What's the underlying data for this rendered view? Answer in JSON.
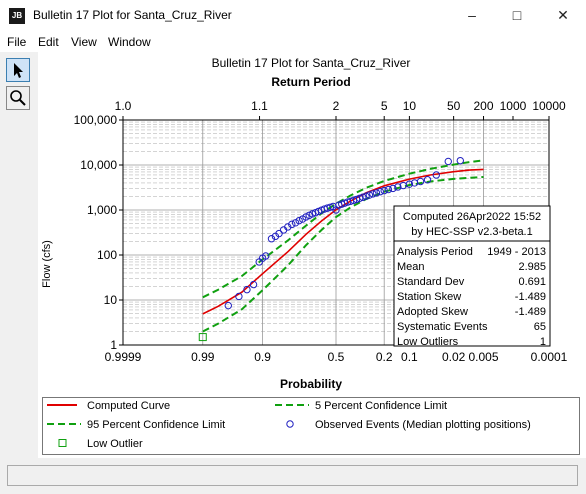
{
  "window": {
    "title": "Bulletin 17 Plot for Santa_Cruz_River",
    "app_icon_label": "JB",
    "minimize_icon": "minimize-icon",
    "maximize_icon": "maximize-icon",
    "close_icon": "close-icon"
  },
  "menu": [
    "File",
    "Edit",
    "View",
    "Window"
  ],
  "tools": [
    {
      "name": "pointer-tool",
      "icon": "arrow-pointer-icon"
    },
    {
      "name": "zoom-tool",
      "icon": "magnifier-icon"
    }
  ],
  "chart_data": {
    "type": "scatter",
    "title": "Bulletin 17 Plot for Santa_Cruz_River",
    "top_axis_label": "Return Period",
    "top_ticks": [
      "1.0",
      "1.1",
      "2",
      "5",
      "10",
      "50",
      "200",
      "1000",
      "10000"
    ],
    "xlabel": "Probability",
    "x_ticks": [
      "0.9999",
      "0.99",
      "0.9",
      "0.5",
      "0.2",
      "0.1",
      "0.02",
      "0.005",
      "0.0001"
    ],
    "ylabel": "Flow (cfs)",
    "y_ticks": [
      "1",
      "10",
      "100",
      "1,000",
      "10,000",
      "100,000"
    ],
    "ylim": [
      1,
      100000
    ],
    "y_scale": "log",
    "x_scale": "normal-probability",
    "grid": true,
    "series": [
      {
        "name": "Computed Curve",
        "color": "#e00000",
        "style": "solid",
        "points": [
          [
            0.99,
            4.9
          ],
          [
            0.98,
            7.3
          ],
          [
            0.95,
            14.9
          ],
          [
            0.9,
            38.5
          ],
          [
            0.8,
            118
          ],
          [
            0.7,
            288
          ],
          [
            0.6,
            570
          ],
          [
            0.5,
            1010
          ],
          [
            0.4,
            1580
          ],
          [
            0.3,
            2400
          ],
          [
            0.2,
            3450
          ],
          [
            0.1,
            4870
          ],
          [
            0.05,
            6000
          ],
          [
            0.02,
            7100
          ],
          [
            0.01,
            7700
          ],
          [
            0.005,
            8000
          ]
        ]
      },
      {
        "name": "5 Percent Confidence Limit",
        "color": "#10a010",
        "style": "dashed",
        "points": [
          [
            0.99,
            11.5
          ],
          [
            0.98,
            17
          ],
          [
            0.95,
            34
          ],
          [
            0.9,
            80
          ],
          [
            0.8,
            210
          ],
          [
            0.7,
            450
          ],
          [
            0.6,
            840
          ],
          [
            0.5,
            1380
          ],
          [
            0.4,
            2100
          ],
          [
            0.3,
            3100
          ],
          [
            0.2,
            4400
          ],
          [
            0.1,
            6400
          ],
          [
            0.05,
            8200
          ],
          [
            0.02,
            10200
          ],
          [
            0.01,
            11600
          ],
          [
            0.005,
            12700
          ]
        ]
      },
      {
        "name": "95 Percent Confidence Limit",
        "color": "#10a010",
        "style": "dashed",
        "points": [
          [
            0.99,
            2.0
          ],
          [
            0.98,
            3.0
          ],
          [
            0.95,
            6.2
          ],
          [
            0.9,
            16.5
          ],
          [
            0.8,
            58
          ],
          [
            0.7,
            165
          ],
          [
            0.6,
            360
          ],
          [
            0.5,
            700
          ],
          [
            0.4,
            1140
          ],
          [
            0.3,
            1750
          ],
          [
            0.2,
            2550
          ],
          [
            0.1,
            3600
          ],
          [
            0.05,
            4300
          ],
          [
            0.02,
            4900
          ],
          [
            0.01,
            5200
          ],
          [
            0.005,
            5400
          ]
        ]
      },
      {
        "name": "Observed Events (Median plotting positions)",
        "color": "#2020c0",
        "marker": "circle",
        "points": [
          [
            0.97,
            7.5
          ],
          [
            0.955,
            12
          ],
          [
            0.94,
            17
          ],
          [
            0.925,
            22
          ],
          [
            0.91,
            70
          ],
          [
            0.9,
            85
          ],
          [
            0.89,
            95
          ],
          [
            0.87,
            230
          ],
          [
            0.855,
            260
          ],
          [
            0.84,
            300
          ],
          [
            0.82,
            360
          ],
          [
            0.8,
            420
          ],
          [
            0.78,
            480
          ],
          [
            0.76,
            520
          ],
          [
            0.74,
            580
          ],
          [
            0.72,
            630
          ],
          [
            0.7,
            700
          ],
          [
            0.68,
            760
          ],
          [
            0.66,
            820
          ],
          [
            0.64,
            870
          ],
          [
            0.62,
            930
          ],
          [
            0.6,
            990
          ],
          [
            0.58,
            1050
          ],
          [
            0.56,
            1100
          ],
          [
            0.54,
            1150
          ],
          [
            0.52,
            1200
          ],
          [
            0.5,
            1000
          ],
          [
            0.48,
            1280
          ],
          [
            0.46,
            1350
          ],
          [
            0.44,
            1420
          ],
          [
            0.42,
            1500
          ],
          [
            0.4,
            1560
          ],
          [
            0.38,
            1640
          ],
          [
            0.36,
            1720
          ],
          [
            0.34,
            1820
          ],
          [
            0.32,
            1920
          ],
          [
            0.3,
            2020
          ],
          [
            0.28,
            2150
          ],
          [
            0.26,
            2280
          ],
          [
            0.24,
            2400
          ],
          [
            0.22,
            2550
          ],
          [
            0.2,
            2700
          ],
          [
            0.18,
            2850
          ],
          [
            0.16,
            3020
          ],
          [
            0.14,
            3250
          ],
          [
            0.12,
            3500
          ],
          [
            0.1,
            3750
          ],
          [
            0.085,
            4000
          ],
          [
            0.07,
            4300
          ],
          [
            0.055,
            4700
          ],
          [
            0.04,
            6000
          ],
          [
            0.025,
            12000
          ],
          [
            0.015,
            12500
          ]
        ]
      },
      {
        "name": "Low Outlier",
        "color": "#10a010",
        "marker": "square",
        "points": [
          [
            0.99,
            1.5
          ]
        ]
      }
    ],
    "stats": {
      "header1": "Computed 26Apr2022 15:52",
      "header2": "by HEC-SSP v2.3-beta.1",
      "rows": [
        {
          "label": "Analysis Period",
          "value": "1949 - 2013"
        },
        {
          "label": "Mean",
          "value": "2.985"
        },
        {
          "label": "Standard Dev",
          "value": "0.691"
        },
        {
          "label": "Station Skew",
          "value": "-1.489"
        },
        {
          "label": "Adopted Skew",
          "value": "-1.489"
        },
        {
          "label": "Systematic Events",
          "value": "65"
        },
        {
          "label": "Low Outliers",
          "value": "1"
        }
      ]
    },
    "legend": [
      {
        "label": "Computed Curve",
        "symbol": "line",
        "color": "#e00000"
      },
      {
        "label": "5 Percent Confidence Limit",
        "symbol": "dash",
        "color": "#10a010"
      },
      {
        "label": "95 Percent Confidence Limit",
        "symbol": "dash",
        "color": "#10a010"
      },
      {
        "label": "Observed Events (Median plotting positions)",
        "symbol": "circle",
        "color": "#2020c0"
      },
      {
        "label": "Low Outlier",
        "symbol": "square",
        "color": "#10a010"
      }
    ]
  }
}
